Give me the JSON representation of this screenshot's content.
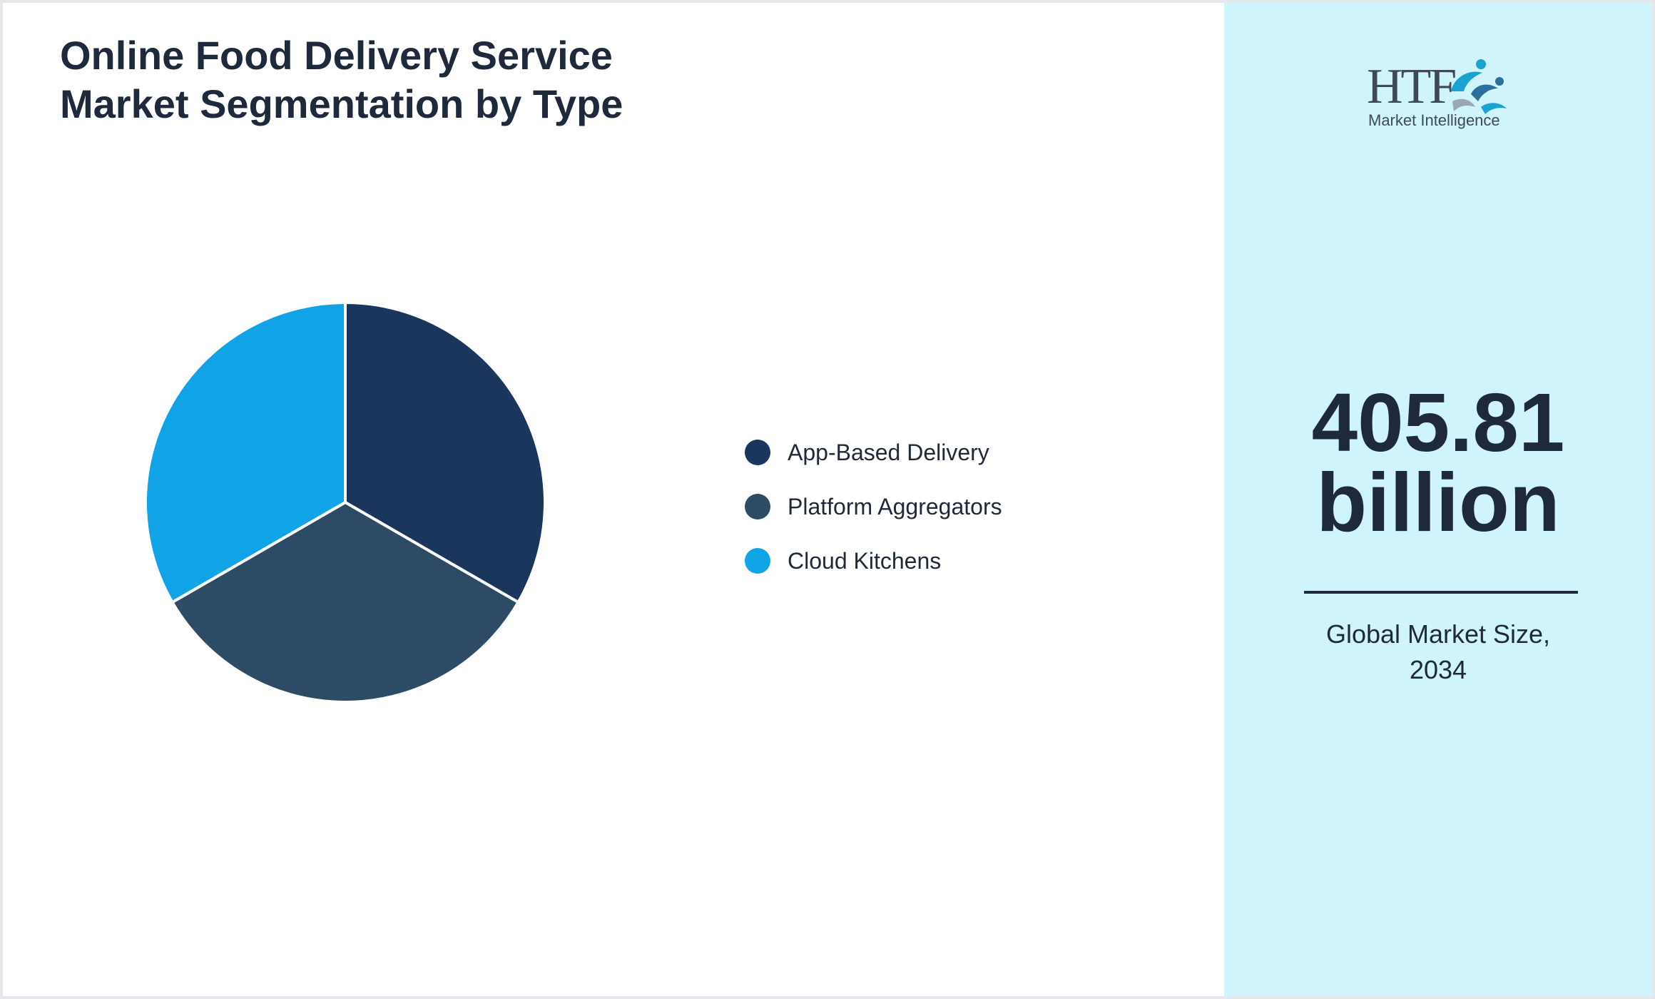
{
  "title": {
    "line1": "Online Food Delivery Service",
    "line2": "Market Segmentation by Type"
  },
  "chart_data": {
    "type": "pie",
    "title": "Online Food Delivery Service Market Segmentation by Type",
    "categories": [
      "App-Based Delivery",
      "Platform Aggregators",
      "Cloud Kitchens"
    ],
    "values": [
      33.33,
      33.33,
      33.33
    ],
    "colors": [
      "#1b365d",
      "#2e4b66",
      "#10a3e6"
    ],
    "slice_border": "#ffffff",
    "legend_position": "right"
  },
  "logo": {
    "letters": "HTF",
    "subtitle": "Market Intelligence",
    "colors": {
      "text": "#3f4a56",
      "accent": "#1aa3cf",
      "dark": "#2b6f9f"
    }
  },
  "market_size": {
    "value_line1": "405.81",
    "value_line2": "billion",
    "caption_line1": "Global Market Size,",
    "caption_line2": "2034"
  },
  "theme": {
    "panel_background": "#cff4fb",
    "text_color": "#1e293b"
  }
}
